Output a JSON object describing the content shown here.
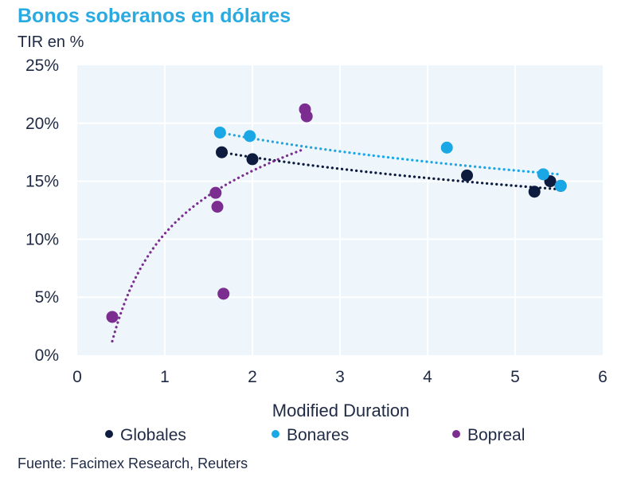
{
  "header": {
    "title": "Bonos soberanos en dólares",
    "subtitle": "TIR en %"
  },
  "footer": {
    "source": "Fuente: Facimex Research, Reuters"
  },
  "colors": {
    "title": "#29abe2",
    "text": "#1f2a44",
    "plot_bg": "#eef5fb",
    "grid": "#ffffff",
    "globales": "#0d1b3e",
    "bonares": "#1aa7e6",
    "bopreal": "#7b2d90"
  },
  "chart_data": {
    "type": "scatter",
    "title": "Bonos soberanos en dólares",
    "xlabel": "Modified Duration",
    "ylabel": "TIR en %",
    "xlim": [
      0,
      6
    ],
    "ylim": [
      0,
      25
    ],
    "x_ticks": [
      "0",
      "1",
      "2",
      "3",
      "4",
      "5",
      "6"
    ],
    "y_ticks": [
      "0%",
      "5%",
      "10%",
      "15%",
      "20%",
      "25%"
    ],
    "grid": true,
    "legend_position": "bottom",
    "series": [
      {
        "name": "Globales",
        "color_key": "globales",
        "points": [
          [
            1.65,
            17.5
          ],
          [
            2.0,
            16.9
          ],
          [
            4.45,
            15.5
          ],
          [
            5.22,
            14.1
          ],
          [
            5.4,
            15.0
          ],
          [
            5.52,
            14.6
          ]
        ],
        "trend": [
          [
            1.65,
            17.5
          ],
          [
            5.52,
            14.3
          ]
        ]
      },
      {
        "name": "Bonares",
        "color_key": "bonares",
        "points": [
          [
            1.63,
            19.2
          ],
          [
            1.97,
            18.9
          ],
          [
            4.22,
            17.9
          ],
          [
            5.32,
            15.6
          ],
          [
            5.52,
            14.6
          ]
        ],
        "trend": [
          [
            1.63,
            19.2
          ],
          [
            5.5,
            15.6
          ]
        ]
      },
      {
        "name": "Bopreal",
        "color_key": "bopreal",
        "points": [
          [
            0.4,
            3.3
          ],
          [
            1.58,
            14.0
          ],
          [
            1.6,
            12.8
          ],
          [
            1.67,
            5.3
          ],
          [
            2.6,
            21.2
          ],
          [
            2.62,
            20.6
          ]
        ],
        "trend": [
          [
            0.4,
            1.2
          ],
          [
            2.6,
            17.8
          ]
        ]
      }
    ]
  }
}
